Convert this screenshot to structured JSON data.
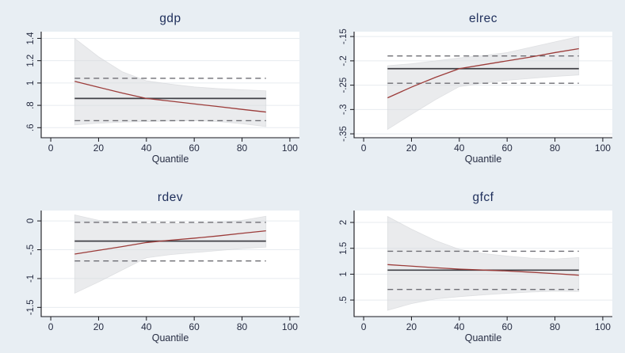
{
  "colors": {
    "page_background": "#e8eef3",
    "plot_background": "#ffffff",
    "gridline": "#e7ebef",
    "axis": "#16161c",
    "title_text": "#20305c",
    "tick_text": "#262c42",
    "quantile_line": "#9c3c3a",
    "ols_line": "#404046",
    "ols_ci_dashed": "#6e6e74",
    "ci_band_fill": "#d6d8db",
    "ci_band_edge": "#d4d6d9"
  },
  "chart_data": [
    {
      "type": "line",
      "title": "gdp",
      "xlabel": "Quantile",
      "x": [
        10,
        20,
        30,
        40,
        50,
        60,
        70,
        80,
        90
      ],
      "xlim": [
        -4,
        104
      ],
      "xtick_values": [
        0,
        20,
        40,
        60,
        80,
        100
      ],
      "xtick_labels": [
        "0",
        "20",
        "40",
        "60",
        "80",
        "100"
      ],
      "ylim": [
        0.51,
        1.46
      ],
      "ytick_values": [
        0.6,
        0.8,
        1.0,
        1.2,
        1.4
      ],
      "ytick_labels": [
        ".6",
        ".8",
        "1",
        "1.2",
        "1.4"
      ],
      "legend": "off",
      "grid": "horizontal",
      "series": [
        {
          "name": "quantile regression coefficient",
          "values": [
            1.015,
            0.962,
            0.91,
            0.862,
            0.838,
            0.813,
            0.789,
            0.764,
            0.74
          ]
        },
        {
          "name": "OLS coefficient",
          "value": 0.862
        },
        {
          "name": "OLS CI upper",
          "value": 1.042
        },
        {
          "name": "OLS CI lower",
          "value": 0.663
        }
      ],
      "band": {
        "name": "quantile coefficient 95% CI band",
        "upper": [
          1.4,
          1.235,
          1.1,
          1.02,
          0.99,
          0.965,
          0.95,
          0.94,
          0.93
        ],
        "lower": [
          0.625,
          0.64,
          0.65,
          0.655,
          0.66,
          0.663,
          0.655,
          0.635,
          0.61
        ]
      }
    },
    {
      "type": "line",
      "title": "elrec",
      "xlabel": "Quantile",
      "x": [
        10,
        20,
        30,
        40,
        50,
        60,
        70,
        80,
        90
      ],
      "xlim": [
        -4,
        104
      ],
      "xtick_values": [
        0,
        20,
        40,
        60,
        80,
        100
      ],
      "xtick_labels": [
        "0",
        "20",
        "40",
        "60",
        "80",
        "100"
      ],
      "ylim": [
        -0.358,
        -0.14
      ],
      "ytick_values": [
        -0.35,
        -0.3,
        -0.25,
        -0.2,
        -0.15
      ],
      "ytick_labels": [
        "-.35",
        "-.3",
        "-.25",
        "-.2",
        "-.15"
      ],
      "legend": "off",
      "grid": "horizontal",
      "series": [
        {
          "name": "quantile regression coefficient",
          "values": [
            -0.276,
            -0.254,
            -0.234,
            -0.216,
            -0.208,
            -0.2,
            -0.192,
            -0.183,
            -0.175
          ]
        },
        {
          "name": "OLS coefficient",
          "value": -0.216
        },
        {
          "name": "OLS CI upper",
          "value": -0.19
        },
        {
          "name": "OLS CI lower",
          "value": -0.246
        }
      ],
      "band": {
        "name": "quantile coefficient 95% CI band",
        "upper": [
          -0.21,
          -0.206,
          -0.2,
          -0.194,
          -0.189,
          -0.183,
          -0.172,
          -0.161,
          -0.15
        ],
        "lower": [
          -0.341,
          -0.31,
          -0.28,
          -0.253,
          -0.246,
          -0.24,
          -0.236,
          -0.232,
          -0.229
        ]
      }
    },
    {
      "type": "line",
      "title": "rdev",
      "xlabel": "Quantile",
      "x": [
        10,
        20,
        30,
        40,
        50,
        60,
        70,
        80,
        90
      ],
      "xlim": [
        -4,
        104
      ],
      "xtick_values": [
        0,
        20,
        40,
        60,
        80,
        100
      ],
      "xtick_labels": [
        "0",
        "20",
        "40",
        "60",
        "80",
        "100"
      ],
      "ylim": [
        -1.66,
        0.18
      ],
      "ytick_values": [
        -1.5,
        -1.0,
        -0.5,
        0
      ],
      "ytick_labels": [
        "-1.5",
        "-1",
        "-.5",
        "0"
      ],
      "legend": "off",
      "grid": "horizontal",
      "series": [
        {
          "name": "quantile regression coefficient",
          "values": [
            -0.575,
            -0.51,
            -0.445,
            -0.375,
            -0.335,
            -0.3,
            -0.26,
            -0.215,
            -0.172
          ]
        },
        {
          "name": "OLS coefficient",
          "value": -0.35
        },
        {
          "name": "OLS CI upper",
          "value": -0.025
        },
        {
          "name": "OLS CI lower",
          "value": -0.695
        }
      ],
      "band": {
        "name": "quantile coefficient 95% CI band",
        "upper": [
          0.105,
          0.01,
          -0.035,
          -0.045,
          -0.045,
          -0.04,
          -0.025,
          0.01,
          0.08
        ],
        "lower": [
          -1.255,
          -1.06,
          -0.85,
          -0.64,
          -0.585,
          -0.55,
          -0.515,
          -0.48,
          -0.455
        ]
      }
    },
    {
      "type": "line",
      "title": "gfcf",
      "xlabel": "Quantile",
      "x": [
        10,
        20,
        30,
        40,
        50,
        60,
        70,
        80,
        90
      ],
      "xlim": [
        -4,
        104
      ],
      "xtick_values": [
        0,
        20,
        40,
        60,
        80,
        100
      ],
      "xtick_labels": [
        "0",
        "20",
        "40",
        "60",
        "80",
        "100"
      ],
      "ylim": [
        0.18,
        2.23
      ],
      "ytick_values": [
        0.5,
        1.0,
        1.5,
        2.0
      ],
      "ytick_labels": [
        ".5",
        "1",
        "1.5",
        "2"
      ],
      "legend": "off",
      "grid": "horizontal",
      "series": [
        {
          "name": "quantile regression coefficient",
          "values": [
            1.185,
            1.155,
            1.125,
            1.098,
            1.08,
            1.062,
            1.038,
            1.01,
            0.98
          ]
        },
        {
          "name": "OLS coefficient",
          "value": 1.078
        },
        {
          "name": "OLS CI upper",
          "value": 1.443
        },
        {
          "name": "OLS CI lower",
          "value": 0.705
        }
      ],
      "band": {
        "name": "quantile coefficient 95% CI band",
        "upper": [
          2.115,
          1.87,
          1.65,
          1.48,
          1.4,
          1.35,
          1.31,
          1.295,
          1.32
        ],
        "lower": [
          0.3,
          0.43,
          0.52,
          0.565,
          0.6,
          0.63,
          0.655,
          0.67,
          0.665
        ]
      }
    }
  ]
}
